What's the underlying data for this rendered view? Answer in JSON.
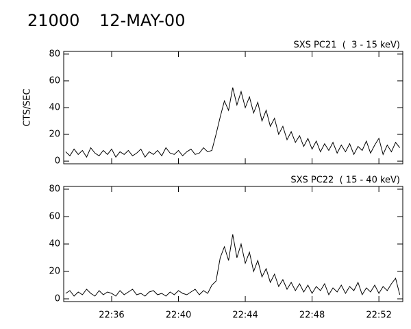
{
  "header": {
    "id": "21000",
    "date": "12-MAY-00"
  },
  "chart_data": [
    {
      "type": "line",
      "title": "SXS PC21  (  3 - 15 keV)",
      "ylabel": "CTS/SEC",
      "xlim": [
        33.13,
        53.43
      ],
      "ylim": [
        -2,
        82
      ],
      "yticks": [
        0,
        20,
        40,
        60,
        80
      ],
      "x": [
        33.25,
        33.5,
        33.75,
        34,
        34.25,
        34.5,
        34.75,
        35,
        35.25,
        35.5,
        35.75,
        36,
        36.25,
        36.5,
        36.75,
        37,
        37.25,
        37.5,
        37.75,
        38,
        38.25,
        38.5,
        38.75,
        39,
        39.25,
        39.5,
        39.75,
        40,
        40.25,
        40.5,
        40.75,
        41,
        41.25,
        41.5,
        41.75,
        42,
        42.25,
        42.5,
        42.75,
        43,
        43.25,
        43.5,
        43.75,
        44,
        44.25,
        44.5,
        44.75,
        45,
        45.25,
        45.5,
        45.75,
        46,
        46.25,
        46.5,
        46.75,
        47,
        47.25,
        47.5,
        47.75,
        48,
        48.25,
        48.5,
        48.75,
        49,
        49.25,
        49.5,
        49.75,
        50,
        50.25,
        50.5,
        50.75,
        51,
        51.25,
        51.5,
        51.75,
        52,
        52.25,
        52.5,
        52.75,
        53,
        53.25
      ],
      "color": "#000000",
      "values": [
        7,
        4,
        9,
        5,
        8,
        3,
        10,
        6,
        4,
        8,
        5,
        9,
        3,
        7,
        5,
        8,
        4,
        6,
        9,
        3,
        7,
        5,
        8,
        4,
        10,
        6,
        5,
        8,
        4,
        7,
        9,
        5,
        6,
        10,
        7,
        8,
        20,
        33,
        45,
        38,
        55,
        42,
        52,
        40,
        48,
        36,
        44,
        30,
        38,
        26,
        32,
        20,
        26,
        16,
        22,
        14,
        19,
        11,
        17,
        9,
        15,
        7,
        13,
        8,
        14,
        6,
        12,
        7,
        13,
        5,
        11,
        8,
        15,
        6,
        12,
        17,
        5,
        12,
        7,
        14,
        10
      ]
    },
    {
      "type": "line",
      "title": "SXS PC22  ( 15 - 40 keV)",
      "xlim": [
        33.13,
        53.43
      ],
      "ylim": [
        -2,
        82
      ],
      "yticks": [
        0,
        20,
        40,
        60,
        80
      ],
      "xticks": [
        {
          "value": 36,
          "label": "22:36"
        },
        {
          "value": 40,
          "label": "22:40"
        },
        {
          "value": 44,
          "label": "22:44"
        },
        {
          "value": 48,
          "label": "22:48"
        },
        {
          "value": 52,
          "label": "22:52"
        }
      ],
      "x": [
        33.25,
        33.5,
        33.75,
        34,
        34.25,
        34.5,
        34.75,
        35,
        35.25,
        35.5,
        35.75,
        36,
        36.25,
        36.5,
        36.75,
        37,
        37.25,
        37.5,
        37.75,
        38,
        38.25,
        38.5,
        38.75,
        39,
        39.25,
        39.5,
        39.75,
        40,
        40.25,
        40.5,
        40.75,
        41,
        41.25,
        41.5,
        41.75,
        42,
        42.25,
        42.5,
        42.75,
        43,
        43.25,
        43.5,
        43.75,
        44,
        44.25,
        44.5,
        44.75,
        45,
        45.25,
        45.5,
        45.75,
        46,
        46.25,
        46.5,
        46.75,
        47,
        47.25,
        47.5,
        47.75,
        48,
        48.25,
        48.5,
        48.75,
        49,
        49.25,
        49.5,
        49.75,
        50,
        50.25,
        50.5,
        50.75,
        51,
        51.25,
        51.5,
        51.75,
        52,
        52.25,
        52.5,
        52.75,
        53,
        53.25
      ],
      "color": "#000000",
      "values": [
        4,
        6,
        2,
        5,
        3,
        7,
        4,
        2,
        6,
        3,
        5,
        4,
        2,
        6,
        3,
        5,
        7,
        3,
        4,
        2,
        5,
        6,
        3,
        4,
        2,
        5,
        3,
        6,
        4,
        3,
        5,
        7,
        3,
        6,
        4,
        10,
        13,
        30,
        38,
        28,
        47,
        30,
        40,
        26,
        34,
        20,
        28,
        16,
        22,
        12,
        18,
        9,
        14,
        7,
        12,
        6,
        11,
        5,
        10,
        4,
        9,
        6,
        11,
        3,
        8,
        5,
        10,
        4,
        9,
        6,
        12,
        3,
        8,
        5,
        10,
        4,
        9,
        6,
        11,
        15,
        3
      ]
    }
  ]
}
